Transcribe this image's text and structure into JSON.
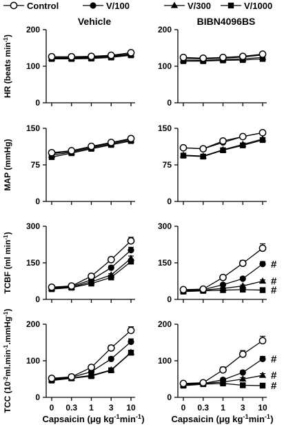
{
  "legend": [
    {
      "name": "Control",
      "marker": "open-circle"
    },
    {
      "name": "V/100",
      "marker": "filled-circle"
    },
    {
      "name": "V/300",
      "marker": "filled-triangle"
    },
    {
      "name": "V/1000",
      "marker": "filled-square"
    }
  ],
  "columns": [
    "Vehicle",
    "BIBN4096BS"
  ],
  "x_ticks": [
    "0",
    "0.3",
    "1",
    "3",
    "10"
  ],
  "x_label_text": "Capsaicin (μg kg",
  "x_label_sup": "-1",
  "x_label_mid": " min",
  "x_label_sup2": "-1",
  "x_label_end": ")",
  "row_labels": [
    {
      "main": "HR (beats min",
      "sup": "-1",
      "end": ")"
    },
    {
      "main": "MAP (mmHg)",
      "sup": "",
      "end": ""
    },
    {
      "main": "TCBF (ml min",
      "sup": "-1",
      "end": ")"
    },
    {
      "main": "TCC (10",
      "sup": "-2",
      "end": " ml.min",
      "sup2": "-1",
      "end2": ".mmHg",
      "sup3": "-1",
      "end3": ")"
    }
  ],
  "significance_marker": "#",
  "chart_data": [
    {
      "type": "line",
      "title": "Vehicle",
      "ylabel": "HR (beats min-1)",
      "ylim": [
        0,
        200
      ],
      "yticks": [
        "0",
        "100",
        "200"
      ],
      "x": [
        "0",
        "0.3",
        "1",
        "3",
        "10"
      ],
      "series": [
        {
          "name": "Control",
          "values": [
            126,
            126,
            127,
            130,
            137
          ],
          "err": [
            0,
            0,
            0,
            0,
            0
          ]
        },
        {
          "name": "V/100",
          "values": [
            124,
            124,
            125,
            128,
            134
          ],
          "err": [
            0,
            0,
            0,
            0,
            0
          ]
        },
        {
          "name": "V/300",
          "values": [
            122,
            122,
            123,
            126,
            132
          ],
          "err": [
            0,
            0,
            0,
            0,
            0
          ]
        },
        {
          "name": "V/1000",
          "values": [
            120,
            120,
            121,
            124,
            130
          ],
          "err": [
            0,
            0,
            0,
            0,
            0
          ]
        }
      ]
    },
    {
      "type": "line",
      "title": "BIBN4096BS",
      "ylabel": "HR (beats min-1)",
      "ylim": [
        0,
        200
      ],
      "yticks": [
        "0",
        "100",
        "200"
      ],
      "x": [
        "0",
        "0.3",
        "1",
        "3",
        "10"
      ],
      "series": [
        {
          "name": "Control",
          "values": [
            124,
            122,
            124,
            127,
            133
          ],
          "err": [
            0,
            0,
            0,
            0,
            0
          ]
        },
        {
          "name": "V/100",
          "values": [
            122,
            120,
            122,
            125,
            131
          ],
          "err": [
            0,
            0,
            0,
            0,
            0
          ]
        },
        {
          "name": "V/300",
          "values": [
            117,
            116,
            118,
            120,
            124
          ],
          "err": [
            0,
            0,
            0,
            0,
            0
          ]
        },
        {
          "name": "V/1000",
          "values": [
            114,
            114,
            116,
            117,
            120
          ],
          "err": [
            0,
            0,
            0,
            0,
            0
          ]
        }
      ],
      "sig": []
    },
    {
      "type": "line",
      "title": "Vehicle",
      "ylabel": "MAP (mmHg)",
      "ylim": [
        0,
        150
      ],
      "yticks": [
        "0",
        "75",
        "150"
      ],
      "x": [
        "0",
        "0.3",
        "1",
        "3",
        "10"
      ],
      "series": [
        {
          "name": "Control",
          "values": [
            100,
            104,
            113,
            121,
            129
          ],
          "err": [
            0,
            0,
            0,
            0,
            0
          ]
        },
        {
          "name": "V/100",
          "values": [
            98,
            103,
            112,
            120,
            128
          ],
          "err": [
            0,
            0,
            0,
            0,
            0
          ]
        },
        {
          "name": "V/300",
          "values": [
            95,
            101,
            110,
            118,
            126
          ],
          "err": [
            0,
            0,
            0,
            0,
            0
          ]
        },
        {
          "name": "V/1000",
          "values": [
            91,
            99,
            108,
            116,
            124
          ],
          "err": [
            0,
            0,
            0,
            0,
            0
          ]
        }
      ]
    },
    {
      "type": "line",
      "title": "BIBN4096BS",
      "ylabel": "MAP (mmHg)",
      "ylim": [
        0,
        150
      ],
      "yticks": [
        "0",
        "75",
        "150"
      ],
      "x": [
        "0",
        "0.3",
        "1",
        "3",
        "10"
      ],
      "series": [
        {
          "name": "Control",
          "values": [
            110,
            108,
            124,
            133,
            141
          ],
          "err": [
            0,
            0,
            0,
            0,
            0
          ]
        },
        {
          "name": "V/100",
          "values": [
            110,
            108,
            121,
            133,
            141
          ],
          "err": [
            0,
            0,
            0,
            0,
            0
          ]
        },
        {
          "name": "V/300",
          "values": [
            95,
            93,
            106,
            117,
            128
          ],
          "err": [
            0,
            0,
            0,
            0,
            0
          ]
        },
        {
          "name": "V/1000",
          "values": [
            94,
            92,
            105,
            115,
            126
          ],
          "err": [
            0,
            0,
            0,
            0,
            0
          ]
        }
      ],
      "sig": []
    },
    {
      "type": "line",
      "title": "Vehicle",
      "ylabel": "TCBF (ml min-1)",
      "ylim": [
        0,
        300
      ],
      "yticks": [
        "0",
        "150",
        "300"
      ],
      "x": [
        "0",
        "0.3",
        "1",
        "3",
        "10"
      ],
      "series": [
        {
          "name": "Control",
          "values": [
            50,
            55,
            95,
            163,
            240
          ],
          "err": [
            5,
            5,
            8,
            10,
            15
          ]
        },
        {
          "name": "V/100",
          "values": [
            48,
            53,
            80,
            130,
            202
          ],
          "err": [
            4,
            4,
            6,
            8,
            12
          ]
        },
        {
          "name": "V/300",
          "values": [
            45,
            50,
            72,
            100,
            168
          ],
          "err": [
            4,
            4,
            5,
            6,
            10
          ]
        },
        {
          "name": "V/1000",
          "values": [
            42,
            48,
            65,
            90,
            155
          ],
          "err": [
            4,
            4,
            5,
            6,
            8
          ]
        }
      ]
    },
    {
      "type": "line",
      "title": "BIBN4096BS",
      "ylabel": "TCBF (ml min-1)",
      "ylim": [
        0,
        300
      ],
      "yticks": [
        "0",
        "150",
        "300"
      ],
      "x": [
        "0",
        "0.3",
        "1",
        "3",
        "10"
      ],
      "series": [
        {
          "name": "Control",
          "values": [
            40,
            42,
            90,
            148,
            210
          ],
          "err": [
            3,
            3,
            8,
            12,
            18
          ]
        },
        {
          "name": "V/100",
          "values": [
            38,
            40,
            60,
            85,
            145
          ],
          "err": [
            3,
            3,
            5,
            7,
            10
          ]
        },
        {
          "name": "V/300",
          "values": [
            35,
            38,
            45,
            55,
            75
          ],
          "err": [
            3,
            3,
            3,
            4,
            5
          ]
        },
        {
          "name": "V/1000",
          "values": [
            32,
            35,
            38,
            40,
            38
          ],
          "err": [
            3,
            3,
            3,
            3,
            3
          ]
        }
      ],
      "sig": [
        1,
        2,
        3
      ]
    },
    {
      "type": "line",
      "title": "Vehicle",
      "ylabel": "TCC (10-2 ml.min-1.mmHg-1)",
      "ylim": [
        0,
        200
      ],
      "yticks": [
        "0",
        "100",
        "200"
      ],
      "x": [
        "0",
        "0.3",
        "1",
        "3",
        "10"
      ],
      "series": [
        {
          "name": "Control",
          "values": [
            52,
            56,
            82,
            135,
            183
          ],
          "err": [
            4,
            4,
            5,
            7,
            10
          ]
        },
        {
          "name": "V/100",
          "values": [
            50,
            55,
            70,
            105,
            152
          ],
          "err": [
            4,
            4,
            5,
            6,
            8
          ]
        },
        {
          "name": "V/300",
          "values": [
            48,
            53,
            60,
            75,
            123
          ],
          "err": [
            3,
            3,
            4,
            5,
            6
          ]
        },
        {
          "name": "V/1000",
          "values": [
            46,
            52,
            58,
            74,
            122
          ],
          "err": [
            3,
            3,
            4,
            5,
            6
          ]
        }
      ]
    },
    {
      "type": "line",
      "title": "BIBN4096BS",
      "ylabel": "TCC (10-2 ml.min-1.mmHg-1)",
      "ylim": [
        0,
        200
      ],
      "yticks": [
        "0",
        "100",
        "200"
      ],
      "x": [
        "0",
        "0.3",
        "1",
        "3",
        "10"
      ],
      "series": [
        {
          "name": "Control",
          "values": [
            38,
            40,
            75,
            118,
            155
          ],
          "err": [
            3,
            3,
            8,
            10,
            12
          ]
        },
        {
          "name": "V/100",
          "values": [
            36,
            38,
            48,
            68,
            105
          ],
          "err": [
            3,
            3,
            4,
            5,
            7
          ]
        },
        {
          "name": "V/300",
          "values": [
            34,
            38,
            42,
            50,
            60
          ],
          "err": [
            3,
            3,
            3,
            4,
            5
          ]
        },
        {
          "name": "V/1000",
          "values": [
            32,
            36,
            38,
            33,
            32
          ],
          "err": [
            3,
            3,
            3,
            3,
            3
          ]
        }
      ],
      "sig": [
        1,
        2,
        3
      ]
    }
  ]
}
